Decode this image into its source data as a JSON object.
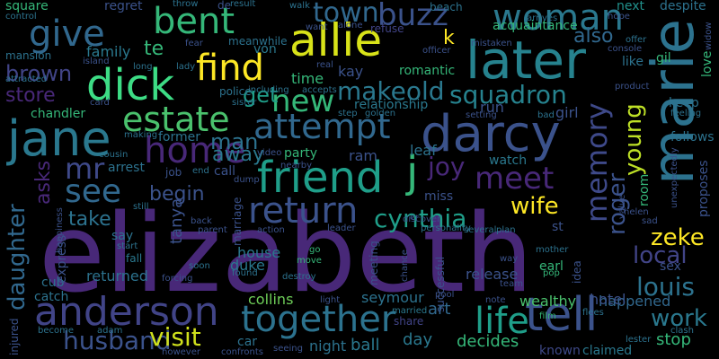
{
  "palette": {
    "background": "#000000",
    "dark_purple": "#440154",
    "indigo": "#3b528b",
    "blue": "#31688e",
    "teal": "#21918c",
    "green": "#35b779",
    "light_green": "#6ece58",
    "yellow": "#fde725"
  },
  "words": [
    {
      "text": "elizabeth",
      "color": "#482878"
    },
    {
      "text": "marie",
      "color": "#2c728e"
    },
    {
      "text": "darcy",
      "color": "#3b528b"
    },
    {
      "text": "later",
      "color": "#26828e"
    },
    {
      "text": "allie",
      "color": "#d8e219"
    },
    {
      "text": "jane",
      "color": "#2a788e"
    },
    {
      "text": "friend",
      "color": "#1f9e89"
    },
    {
      "text": "dick",
      "color": "#3ddc85"
    },
    {
      "text": "tell",
      "color": "#3b528b"
    },
    {
      "text": "woman",
      "color": "#2a788e"
    },
    {
      "text": "anderson",
      "color": "#414487"
    },
    {
      "text": "together",
      "color": "#2c728e"
    },
    {
      "text": "home",
      "color": "#482878"
    },
    {
      "text": "attempt",
      "color": "#31688e"
    },
    {
      "text": "find",
      "color": "#fde725"
    },
    {
      "text": "estate",
      "color": "#4ac16d"
    },
    {
      "text": "bent",
      "color": "#35b779"
    },
    {
      "text": "return",
      "color": "#3b528b"
    },
    {
      "text": "give",
      "color": "#31688e"
    },
    {
      "text": "life",
      "color": "#1f9e89"
    },
    {
      "text": "meet",
      "color": "#482878"
    },
    {
      "text": "memory",
      "color": "#3e4989"
    },
    {
      "text": "new",
      "color": "#35b779"
    },
    {
      "text": "see",
      "color": "#31688e"
    },
    {
      "text": "squadron",
      "color": "#26828e"
    },
    {
      "text": "makeold",
      "color": "#2a788e"
    },
    {
      "text": "town",
      "color": "#31688e"
    },
    {
      "text": "buzz",
      "color": "#3b528b"
    },
    {
      "text": "j",
      "color": "#35b779"
    },
    {
      "text": "mr",
      "color": "#3e4989"
    },
    {
      "text": "husband",
      "color": "#3b528b"
    },
    {
      "text": "visit",
      "color": "#d0e11c"
    },
    {
      "text": "cynthia",
      "color": "#1f9e89"
    },
    {
      "text": "louis",
      "color": "#2c728e"
    },
    {
      "text": "wife",
      "color": "#fde725"
    },
    {
      "text": "local",
      "color": "#414487"
    },
    {
      "text": "work",
      "color": "#2a788e"
    },
    {
      "text": "joy",
      "color": "#482878"
    },
    {
      "text": "young",
      "color": "#bddf26"
    },
    {
      "text": "roger",
      "color": "#3b528b"
    },
    {
      "text": "zeke",
      "color": "#fde725"
    },
    {
      "text": "daughter",
      "color": "#31688e"
    },
    {
      "text": "brown",
      "color": "#414487"
    },
    {
      "text": "store",
      "color": "#482878"
    },
    {
      "text": "man",
      "color": "#2c728e"
    },
    {
      "text": "away",
      "color": "#2a788e"
    },
    {
      "text": "begin",
      "color": "#3b528b"
    },
    {
      "text": "take",
      "color": "#2c728e"
    },
    {
      "text": "get",
      "color": "#1f9e89"
    },
    {
      "text": "asks",
      "color": "#482878"
    },
    {
      "text": "also",
      "color": "#31688e"
    },
    {
      "text": "k",
      "color": "#fde725"
    },
    {
      "text": "te",
      "color": "#35b779"
    },
    {
      "text": "family",
      "color": "#2a788e"
    },
    {
      "text": "ram",
      "color": "#3b528b"
    },
    {
      "text": "leaf",
      "color": "#2c728e"
    },
    {
      "text": "day",
      "color": "#2a788e"
    },
    {
      "text": "decides",
      "color": "#35b779"
    },
    {
      "text": "stop",
      "color": "#35b779"
    },
    {
      "text": "ball",
      "color": "#2a788e"
    },
    {
      "text": "night",
      "color": "#2c728e"
    },
    {
      "text": "art",
      "color": "#31688e"
    },
    {
      "text": "wealthy",
      "color": "#4ac16d"
    },
    {
      "text": "happened",
      "color": "#31688e"
    },
    {
      "text": "hotel",
      "color": "#3b528b"
    },
    {
      "text": "release",
      "color": "#3b528b"
    },
    {
      "text": "tanya",
      "color": "#3b528b"
    },
    {
      "text": "collins",
      "color": "#6ece58"
    },
    {
      "text": "duke",
      "color": "#2a788e"
    },
    {
      "text": "house",
      "color": "#2a788e"
    },
    {
      "text": "seymour",
      "color": "#2c728e"
    },
    {
      "text": "returned",
      "color": "#2c728e"
    },
    {
      "text": "cub",
      "color": "#2c728e"
    },
    {
      "text": "catch",
      "color": "#2c728e"
    },
    {
      "text": "known",
      "color": "#3e4989"
    },
    {
      "text": "claimed",
      "color": "#2a788e"
    },
    {
      "text": "chandler",
      "color": "#35b779"
    },
    {
      "text": "police",
      "color": "#2c728e"
    },
    {
      "text": "relationship",
      "color": "#2a788e"
    },
    {
      "text": "run",
      "color": "#3b528b"
    },
    {
      "text": "girl",
      "color": "#3b528b"
    },
    {
      "text": "follows",
      "color": "#2c728e"
    },
    {
      "text": "time",
      "color": "#35b779"
    },
    {
      "text": "kay",
      "color": "#3b528b"
    },
    {
      "text": "romantic",
      "color": "#35b779"
    },
    {
      "text": "von",
      "color": "#2a788e"
    },
    {
      "text": "meanwhile",
      "color": "#2c728e"
    },
    {
      "text": "regret",
      "color": "#3b528b"
    },
    {
      "text": "mansion",
      "color": "#2c728e"
    },
    {
      "text": "square",
      "color": "#35b779"
    },
    {
      "text": "acquaintance",
      "color": "#35b779"
    },
    {
      "text": "refuse",
      "color": "#414487"
    },
    {
      "text": "next",
      "color": "#21918c"
    },
    {
      "text": "despite",
      "color": "#2c728e"
    },
    {
      "text": "like",
      "color": "#2c728e"
    },
    {
      "text": "gil",
      "color": "#35b779"
    },
    {
      "text": "love",
      "color": "#35b779"
    },
    {
      "text": "keep",
      "color": "#2c728e"
    },
    {
      "text": "former",
      "color": "#2c728e"
    },
    {
      "text": "job",
      "color": "#3b528b"
    },
    {
      "text": "call",
      "color": "#3b528b"
    },
    {
      "text": "party",
      "color": "#35b779"
    },
    {
      "text": "watch",
      "color": "#2a788e"
    },
    {
      "text": "arrest",
      "color": "#2c728e"
    },
    {
      "text": "miss",
      "color": "#3b528b"
    },
    {
      "text": "earl",
      "color": "#35b779"
    },
    {
      "text": "st",
      "color": "#3b528b"
    },
    {
      "text": "room",
      "color": "#35b779"
    },
    {
      "text": "proposes",
      "color": "#3b528b"
    },
    {
      "text": "sex",
      "color": "#3b528b"
    },
    {
      "text": "car",
      "color": "#2c728e"
    },
    {
      "text": "say",
      "color": "#2c728e"
    },
    {
      "text": "fall",
      "color": "#2a788e"
    },
    {
      "text": "express",
      "color": "#3b528b"
    },
    {
      "text": "injured",
      "color": "#3b528b"
    },
    {
      "text": "become",
      "color": "#2c728e"
    },
    {
      "text": "adam",
      "color": "#2c728e"
    },
    {
      "text": "however",
      "color": "#3b528b"
    },
    {
      "text": "confronts",
      "color": "#3b528b"
    },
    {
      "text": "seeing",
      "color": "#3b528b"
    },
    {
      "text": "share",
      "color": "#414487"
    },
    {
      "text": "married",
      "color": "#2a788e"
    },
    {
      "text": "film",
      "color": "#35b779"
    },
    {
      "text": "flees",
      "color": "#2c728e"
    },
    {
      "text": "lester",
      "color": "#2c728e"
    },
    {
      "text": "clash",
      "color": "#2c728e"
    },
    {
      "text": "note",
      "color": "#3b528b"
    },
    {
      "text": "pool",
      "color": "#3b528b"
    },
    {
      "text": "meeting",
      "color": "#3b528b"
    },
    {
      "text": "chance",
      "color": "#3b528b"
    },
    {
      "text": "successful",
      "color": "#3b528b"
    },
    {
      "text": "idea",
      "color": "#3b528b"
    },
    {
      "text": "pop",
      "color": "#35b779"
    },
    {
      "text": "mother",
      "color": "#2c728e"
    },
    {
      "text": "team",
      "color": "#3b528b"
    },
    {
      "text": "way",
      "color": "#3b528b"
    },
    {
      "text": "plan",
      "color": "#2c728e"
    },
    {
      "text": "several",
      "color": "#2c728e"
    },
    {
      "text": "personality",
      "color": "#2c728e"
    },
    {
      "text": "leader",
      "color": "#3b528b"
    },
    {
      "text": "discover",
      "color": "#3b528b"
    },
    {
      "text": "go",
      "color": "#35b779"
    },
    {
      "text": "move",
      "color": "#35b779"
    },
    {
      "text": "destroy",
      "color": "#2c728e"
    },
    {
      "text": "found",
      "color": "#2c728e"
    },
    {
      "text": "forcing",
      "color": "#3b528b"
    },
    {
      "text": "soon",
      "color": "#2c728e"
    },
    {
      "text": "light",
      "color": "#3b528b"
    },
    {
      "text": "marriage",
      "color": "#3b528b"
    },
    {
      "text": "action",
      "color": "#3b528b"
    },
    {
      "text": "dump",
      "color": "#3b528b"
    },
    {
      "text": "nearby",
      "color": "#3b528b"
    },
    {
      "text": "video",
      "color": "#3b528b"
    },
    {
      "text": "end",
      "color": "#2c728e"
    },
    {
      "text": "cousin",
      "color": "#2c728e"
    },
    {
      "text": "making",
      "color": "#2c728e"
    },
    {
      "text": "happiness",
      "color": "#3b528b"
    },
    {
      "text": "still",
      "color": "#2c728e"
    },
    {
      "text": "start",
      "color": "#2c728e"
    },
    {
      "text": "back",
      "color": "#3b528b"
    },
    {
      "text": "parent",
      "color": "#3b528b"
    },
    {
      "text": "card",
      "color": "#3b528b"
    },
    {
      "text": "attracted",
      "color": "#2c728e"
    },
    {
      "text": "long",
      "color": "#2c728e"
    },
    {
      "text": "lady",
      "color": "#2c728e"
    },
    {
      "text": "sister",
      "color": "#2c728e"
    },
    {
      "text": "including",
      "color": "#2c728e"
    },
    {
      "text": "accepts",
      "color": "#2c728e"
    },
    {
      "text": "step",
      "color": "#2c728e"
    },
    {
      "text": "golden",
      "color": "#2c728e"
    },
    {
      "text": "setting",
      "color": "#3b528b"
    },
    {
      "text": "bad",
      "color": "#2c728e"
    },
    {
      "text": "real",
      "color": "#3b528b"
    },
    {
      "text": "fear",
      "color": "#3b528b"
    },
    {
      "text": "island",
      "color": "#3b528b"
    },
    {
      "text": "control",
      "color": "#2c728e"
    },
    {
      "text": "throw",
      "color": "#2c728e"
    },
    {
      "text": "result",
      "color": "#2c728e"
    },
    {
      "text": "walk",
      "color": "#2c728e"
    },
    {
      "text": "want",
      "color": "#3b528b"
    },
    {
      "text": "alone",
      "color": "#3b528b"
    },
    {
      "text": "officer",
      "color": "#3b528b"
    },
    {
      "text": "mistaken",
      "color": "#3b528b"
    },
    {
      "text": "beach",
      "color": "#2c728e"
    },
    {
      "text": "arrives",
      "color": "#2c728e"
    },
    {
      "text": "hope",
      "color": "#3b528b"
    },
    {
      "text": "console",
      "color": "#3b528b"
    },
    {
      "text": "offer",
      "color": "#2c728e"
    },
    {
      "text": "widow",
      "color": "#3b528b"
    },
    {
      "text": "product",
      "color": "#3b528b"
    },
    {
      "text": "feeling",
      "color": "#2c728e"
    },
    {
      "text": "value",
      "color": "#3b528b"
    },
    {
      "text": "helen",
      "color": "#3b528b"
    },
    {
      "text": "sad",
      "color": "#3b528b"
    },
    {
      "text": "unexpectedly",
      "color": "#3b528b"
    },
    {
      "text": "de",
      "color": "#3b528b"
    },
    {
      "text": "er",
      "color": "#3b528b"
    }
  ]
}
